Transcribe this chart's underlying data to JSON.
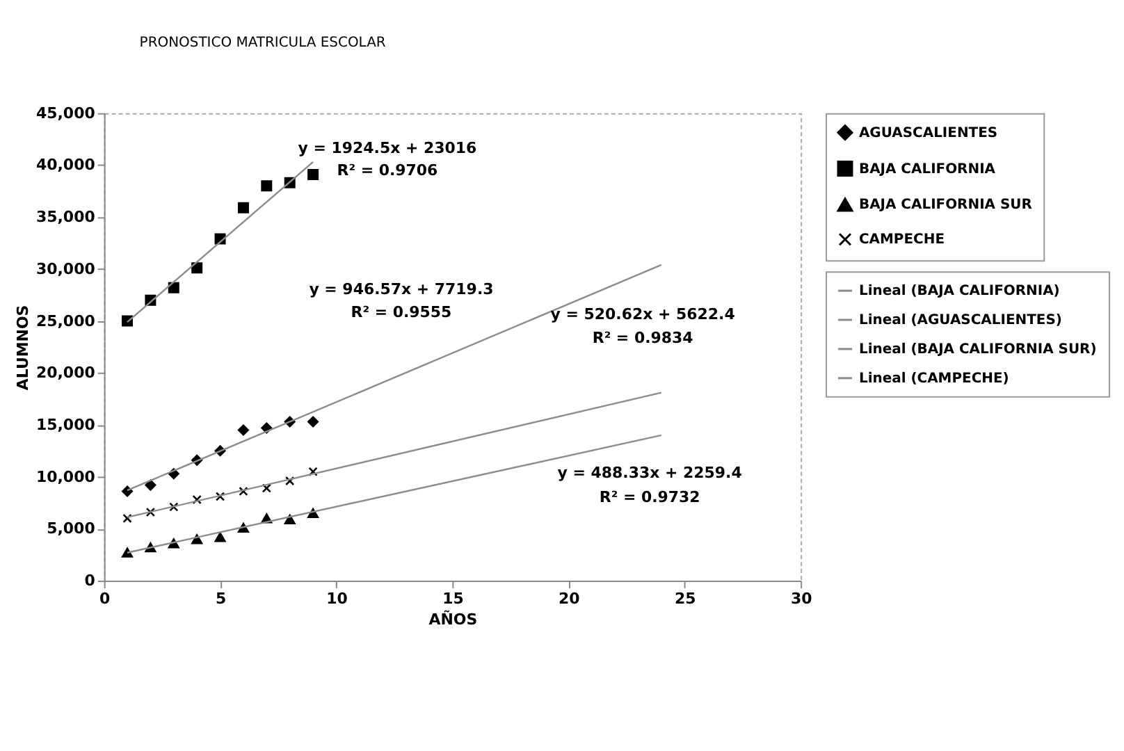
{
  "chart_data": {
    "type": "scatter",
    "title": "PRONOSTICO MATRICULA ESCOLAR",
    "xlabel": "AÑOS",
    "ylabel": "ALUMNOS",
    "xlim": [
      0,
      30
    ],
    "xticks": [
      0,
      5,
      10,
      15,
      20,
      25,
      30
    ],
    "ylim": [
      0,
      45000
    ],
    "yticks": [
      {
        "value": 0,
        "label": "0"
      },
      {
        "value": 5000,
        "label": "5,000"
      },
      {
        "value": 10000,
        "label": "10,000"
      },
      {
        "value": 15000,
        "label": "15,000"
      },
      {
        "value": 20000,
        "label": "20,000"
      },
      {
        "value": 25000,
        "label": "25,000"
      },
      {
        "value": 30000,
        "label": "30,000"
      },
      {
        "value": 35000,
        "label": "35,000"
      },
      {
        "value": 40000,
        "label": "40,000"
      },
      {
        "value": 45000,
        "label": "45,000"
      }
    ],
    "grid": false,
    "legend": "right",
    "series": [
      {
        "name": "AGUASCALIENTES",
        "marker": "diamond",
        "color": "#000000",
        "x": [
          1,
          2,
          3,
          4,
          5,
          6,
          7,
          8,
          9
        ],
        "values": [
          8600,
          9200,
          10300,
          11600,
          12500,
          14500,
          14700,
          15300,
          15300
        ]
      },
      {
        "name": "BAJA CALIFORNIA",
        "marker": "square",
        "color": "#000000",
        "x": [
          1,
          2,
          3,
          4,
          5,
          6,
          7,
          8,
          9
        ],
        "values": [
          25000,
          27000,
          28200,
          30100,
          32900,
          35900,
          38000,
          38300,
          39100
        ]
      },
      {
        "name": "BAJA CALIFORNIA SUR",
        "marker": "triangle",
        "color": "#000000",
        "x": [
          1,
          2,
          3,
          4,
          5,
          6,
          7,
          8,
          9
        ],
        "values": [
          2700,
          3200,
          3600,
          4000,
          4200,
          5100,
          6000,
          5900,
          6500
        ]
      },
      {
        "name": "CAMPECHE",
        "marker": "cross",
        "color": "#000000",
        "x": [
          1,
          2,
          3,
          4,
          5,
          6,
          7,
          8,
          9
        ],
        "values": [
          6000,
          6600,
          7100,
          7800,
          8100,
          8600,
          8900,
          9600,
          10500
        ]
      },
      {
        "name": "Lineal (BAJA CALIFORNIA)",
        "type": "line",
        "line_style": "solid",
        "color": "#8c8c8c",
        "x": [
          1,
          9
        ],
        "values": [
          24900,
          40300
        ]
      },
      {
        "name": "Lineal (AGUASCALIENTES)",
        "type": "line",
        "line_style": "solid",
        "color": "#8c8c8c",
        "x": [
          1,
          24
        ],
        "values": [
          8700,
          30400
        ]
      },
      {
        "name": "Lineal (BAJA CALIFORNIA SUR)",
        "type": "line",
        "line_style": "solid",
        "color": "#8c8c8c",
        "x": [
          1,
          24
        ],
        "values": [
          2700,
          14000
        ]
      },
      {
        "name": "Lineal (CAMPECHE)",
        "type": "line",
        "line_style": "solid",
        "color": "#8c8c8c",
        "x": [
          1,
          24
        ],
        "values": [
          6100,
          18100
        ]
      }
    ],
    "annotations": [
      "y = 1924.5x + 23016",
      "R² = 0.9706",
      "y = 946.57x + 7719.3",
      "R² = 0.9555",
      "y = 520.62x + 5622.4",
      "R² = 0.9834",
      "y = 488.33x + 2259.4",
      "R² = 0.9732"
    ]
  }
}
